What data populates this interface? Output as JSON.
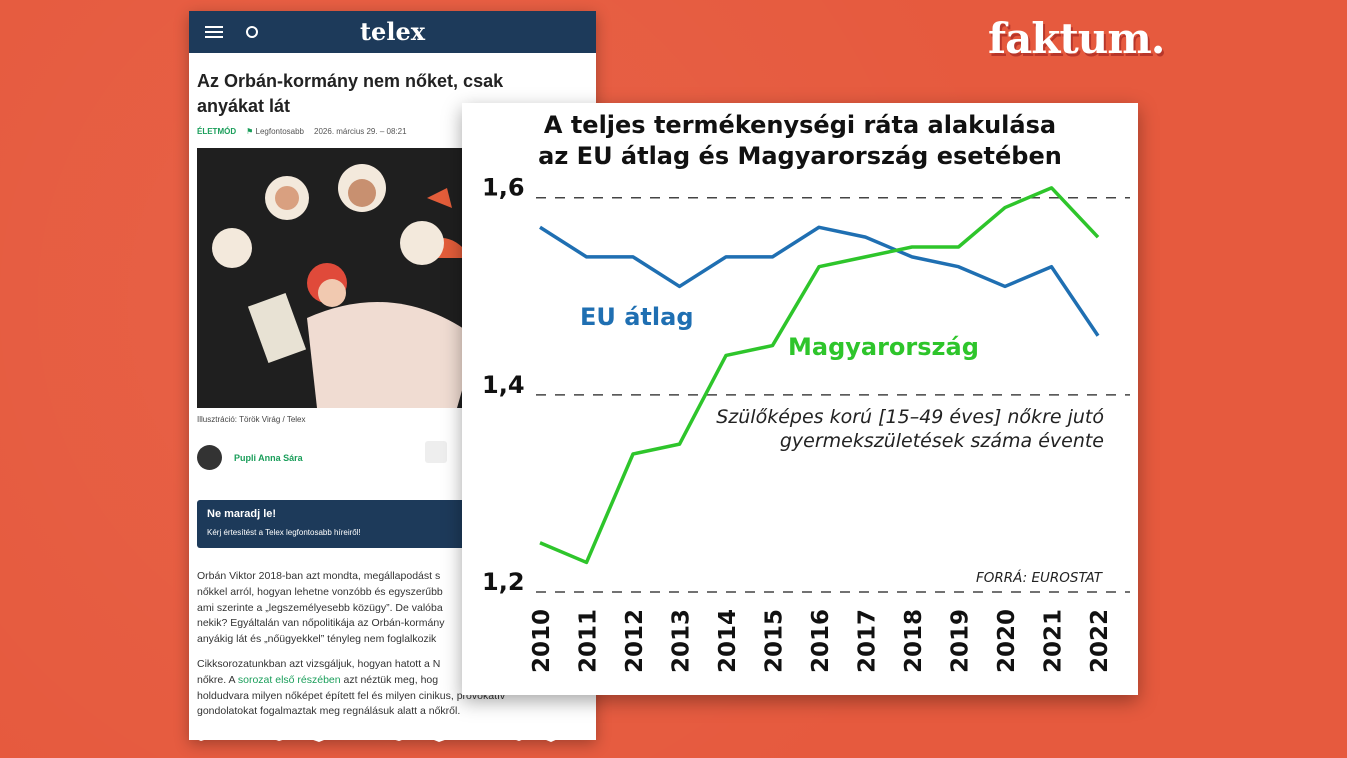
{
  "logo": "faktum.",
  "article": {
    "site": "telex",
    "title": "Az Orbán-kormány nem nőket, csak anyákat lát",
    "tag": "ÉLETMÓD",
    "flag": "Legfontosabb",
    "date": "2026. március 29. – 08:21",
    "caption": "Illusztráció: Török Virág / Telex",
    "author": "Pupli Anna Sára",
    "box_title": "Ne maradj le!",
    "box_text": "Kérj értesítést a Telex legfontosabb híreiről!",
    "paragraphs": [
      [
        "Orbán Viktor 2018-ban azt mondta, megállapodást s",
        "nőkkel arról, hogyan lehetne vonzóbb és egyszerűbb",
        "ami szerinte a „legszemélyesebb közügy”. De valóba",
        "nekik? Egyáltalán van nőpolitikája az Orbán-kormány",
        "anyákig lát és „nőügyekkel” tényleg nem foglalkozik"
      ],
      [
        "Cikksorozatunkban azt vizsgáljuk, hogyan hatott a N",
        {
          "before": "nőkre. A ",
          "link": "sorozat első részében",
          "after": " azt néztük meg, hog"
        },
        "holdudvara milyen nőképet épített fel és milyen cinikus, provokatív",
        "gondolatokat fogalmaztak meg regnálásuk alatt a nőkről."
      ]
    ]
  },
  "chart_data": {
    "type": "line",
    "title": [
      "A teljes termékenységi ráta alakulása",
      "az EU átlag és Magyarország esetében"
    ],
    "annotation": [
      "Szülőképes korú [15–49 éves] nőkre jutó",
      "gyermekszületések száma évente"
    ],
    "source": "FORRÁ: EUROSTAT",
    "categories": [
      "2010",
      "2011",
      "2012",
      "2013",
      "2014",
      "2015",
      "2016",
      "2017",
      "2018",
      "2019",
      "2020",
      "2021",
      "2022"
    ],
    "series": [
      {
        "name": "EU átlag",
        "color": "#1f6fb2",
        "values": [
          1.57,
          1.54,
          1.54,
          1.51,
          1.54,
          1.54,
          1.57,
          1.56,
          1.54,
          1.53,
          1.51,
          1.53,
          1.46
        ]
      },
      {
        "name": "Magyarország",
        "color": "#2ec52b",
        "values": [
          1.25,
          1.23,
          1.34,
          1.35,
          1.44,
          1.45,
          1.53,
          1.54,
          1.55,
          1.55,
          1.59,
          1.61,
          1.56
        ]
      }
    ],
    "ylim": [
      1.2,
      1.62
    ],
    "yticks": [
      {
        "value": 1.2,
        "label": "1,2"
      },
      {
        "value": 1.4,
        "label": "1,4"
      },
      {
        "value": 1.6,
        "label": "1,6"
      }
    ],
    "grid": true
  }
}
